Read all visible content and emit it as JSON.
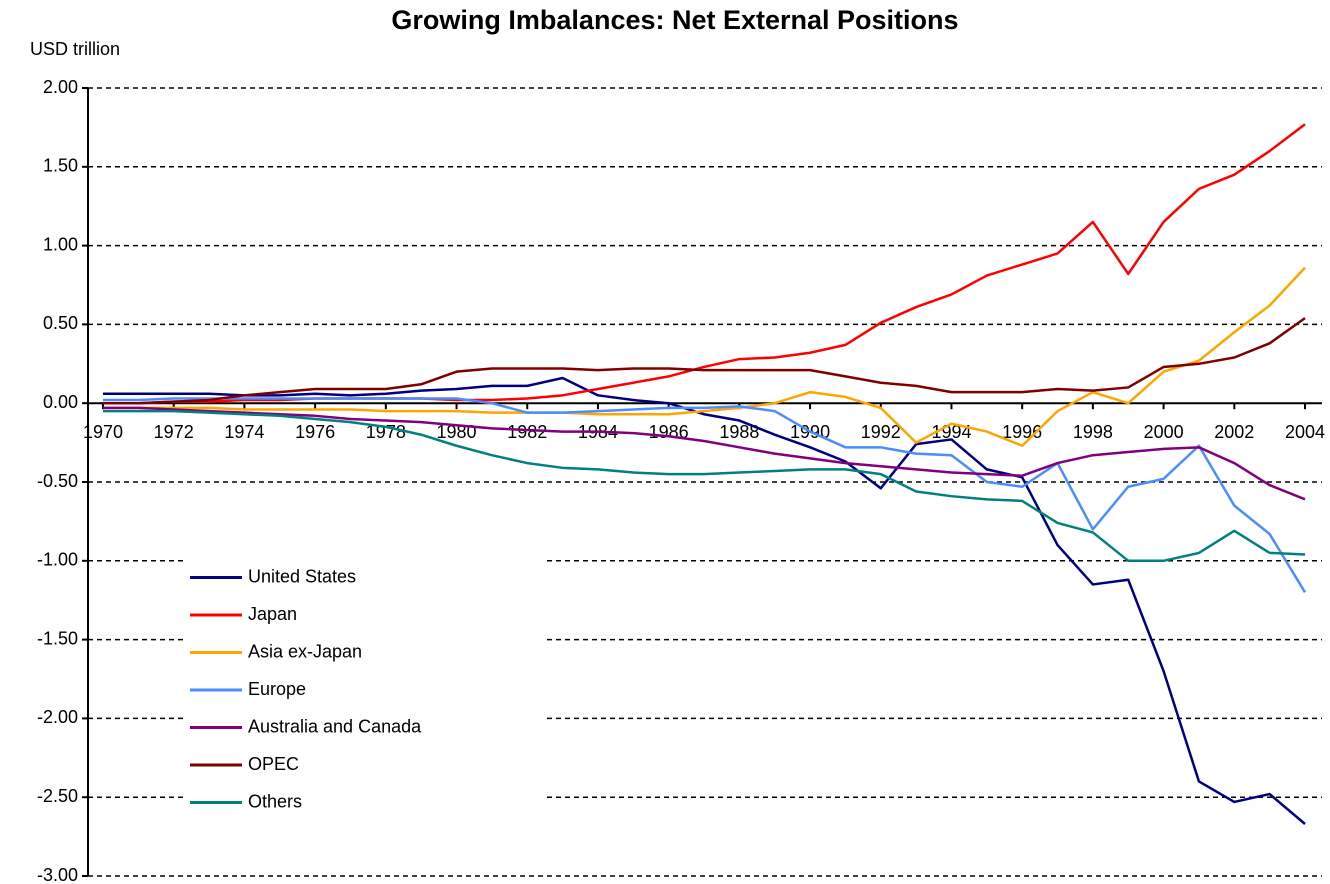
{
  "chart_data": {
    "type": "line",
    "title": "Growing Imbalances: Net External Positions",
    "ylabel": "USD trillion",
    "x": [
      1970,
      1971,
      1972,
      1973,
      1974,
      1975,
      1976,
      1977,
      1978,
      1979,
      1980,
      1981,
      1982,
      1983,
      1984,
      1985,
      1986,
      1987,
      1988,
      1989,
      1990,
      1991,
      1992,
      1993,
      1994,
      1995,
      1996,
      1997,
      1998,
      1999,
      2000,
      2001,
      2002,
      2003,
      2004
    ],
    "xlim": [
      1970,
      2004
    ],
    "xticks": [
      1970,
      1972,
      1974,
      1976,
      1978,
      1980,
      1982,
      1984,
      1986,
      1988,
      1990,
      1992,
      1994,
      1996,
      1998,
      2000,
      2002,
      2004
    ],
    "ylim": [
      -3,
      2
    ],
    "yticks": [
      {
        "value": 2,
        "label": "2.00"
      },
      {
        "value": 1.5,
        "label": "1.50"
      },
      {
        "value": 1,
        "label": "1.00"
      },
      {
        "value": 0.5,
        "label": "0.50"
      },
      {
        "value": 0,
        "label": "0.00"
      },
      {
        "value": -0.5,
        "label": "-0.50"
      },
      {
        "value": -1,
        "label": "-1.00"
      },
      {
        "value": -1.5,
        "label": "-1.50"
      },
      {
        "value": -2,
        "label": "-2.00"
      },
      {
        "value": -2.5,
        "label": "-2.50"
      },
      {
        "value": -3,
        "label": "-3.00"
      }
    ],
    "grid": true,
    "legend": "lower left",
    "series": [
      {
        "name": "United States",
        "color": "#000080",
        "values": [
          0.06,
          0.06,
          0.06,
          0.06,
          0.05,
          0.05,
          0.06,
          0.05,
          0.06,
          0.08,
          0.09,
          0.11,
          0.11,
          0.16,
          0.05,
          0.02,
          0.0,
          -0.07,
          -0.11,
          -0.2,
          -0.28,
          -0.37,
          -0.54,
          -0.26,
          -0.23,
          -0.42,
          -0.47,
          -0.9,
          -1.15,
          -1.12,
          -1.7,
          -2.4,
          -2.53,
          -2.48,
          -2.67
        ]
      },
      {
        "name": "Japan",
        "color": "#ff0000",
        "values": [
          0.0,
          0.0,
          0.01,
          0.01,
          0.02,
          0.02,
          0.03,
          0.03,
          0.03,
          0.03,
          0.02,
          0.02,
          0.03,
          0.05,
          0.09,
          0.13,
          0.17,
          0.23,
          0.28,
          0.29,
          0.32,
          0.37,
          0.51,
          0.61,
          0.69,
          0.81,
          0.88,
          0.95,
          1.15,
          0.82,
          1.15,
          1.36,
          1.45,
          1.6,
          1.77
        ]
      },
      {
        "name": "Asia ex-Japan",
        "color": "#ffa500",
        "values": [
          -0.03,
          -0.03,
          -0.03,
          -0.03,
          -0.04,
          -0.04,
          -0.04,
          -0.04,
          -0.05,
          -0.05,
          -0.05,
          -0.06,
          -0.06,
          -0.06,
          -0.07,
          -0.07,
          -0.07,
          -0.05,
          -0.03,
          0.0,
          0.07,
          0.04,
          -0.03,
          -0.25,
          -0.13,
          -0.18,
          -0.27,
          -0.05,
          0.07,
          0.0,
          0.2,
          0.27,
          0.45,
          0.62,
          0.86
        ]
      },
      {
        "name": "Europe",
        "color": "#4d8cff",
        "values": [
          0.02,
          0.02,
          0.03,
          0.03,
          0.03,
          0.03,
          0.03,
          0.03,
          0.03,
          0.03,
          0.03,
          0.0,
          -0.06,
          -0.06,
          -0.05,
          -0.04,
          -0.03,
          -0.03,
          -0.02,
          -0.05,
          -0.18,
          -0.28,
          -0.28,
          -0.32,
          -0.33,
          -0.5,
          -0.53,
          -0.38,
          -0.8,
          -0.53,
          -0.48,
          -0.27,
          -0.65,
          -0.83,
          -1.2
        ]
      },
      {
        "name": "Australia and Canada",
        "color": "#800080",
        "values": [
          -0.03,
          -0.03,
          -0.04,
          -0.05,
          -0.06,
          -0.07,
          -0.08,
          -0.1,
          -0.11,
          -0.12,
          -0.14,
          -0.16,
          -0.17,
          -0.18,
          -0.18,
          -0.19,
          -0.21,
          -0.24,
          -0.28,
          -0.32,
          -0.35,
          -0.38,
          -0.4,
          -0.42,
          -0.44,
          -0.45,
          -0.46,
          -0.38,
          -0.33,
          -0.31,
          -0.29,
          -0.28,
          -0.38,
          -0.52,
          -0.61
        ]
      },
      {
        "name": "OPEC",
        "color": "#800000",
        "values": [
          0.0,
          0.0,
          0.01,
          0.02,
          0.05,
          0.07,
          0.09,
          0.09,
          0.09,
          0.12,
          0.2,
          0.22,
          0.22,
          0.22,
          0.21,
          0.22,
          0.22,
          0.21,
          0.21,
          0.21,
          0.21,
          0.17,
          0.13,
          0.11,
          0.07,
          0.07,
          0.07,
          0.09,
          0.08,
          0.1,
          0.23,
          0.25,
          0.29,
          0.38,
          0.54
        ]
      },
      {
        "name": "Others",
        "color": "#008080",
        "values": [
          -0.05,
          -0.05,
          -0.05,
          -0.06,
          -0.07,
          -0.08,
          -0.1,
          -0.12,
          -0.15,
          -0.2,
          -0.27,
          -0.33,
          -0.38,
          -0.41,
          -0.42,
          -0.44,
          -0.45,
          -0.45,
          -0.44,
          -0.43,
          -0.42,
          -0.42,
          -0.45,
          -0.56,
          -0.59,
          -0.61,
          -0.62,
          -0.76,
          -0.82,
          -1.0,
          -1.0,
          -0.95,
          -0.81,
          -0.95,
          -0.96
        ]
      }
    ]
  }
}
